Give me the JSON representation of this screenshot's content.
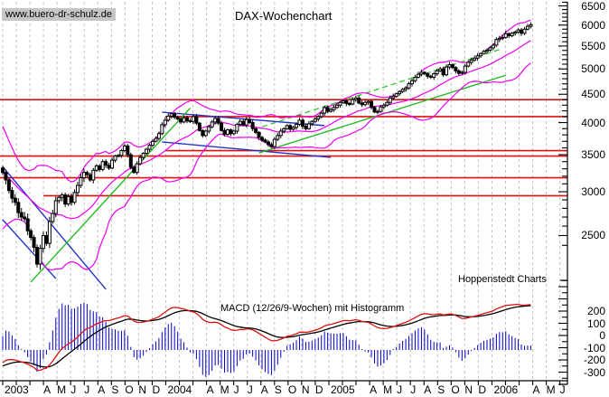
{
  "watermark_text": "www.buero-dr-schulz.de",
  "chart_title": "DAX-Wochenchart",
  "branding_text": "Hoppenstedt Charts",
  "indicator_label": "MACD (12/26/9-Wochen) mit Histogramm",
  "colors": {
    "band": "#ee00ee",
    "trend_green": "#22bb22",
    "trend_green_dashed": "#33cc33",
    "trend_blue": "#2233cc",
    "level_red": "#dd1111",
    "macd_line": "#dd1111",
    "signal_line": "#000000",
    "histogram": "#0000cc",
    "grid": "#c3c3c3",
    "axis": "#000000",
    "candle_up": "#ffffff",
    "candle_down": "#000000",
    "watermark_bg": "#c6c6c6"
  },
  "price_axis": {
    "tick_values": [
      6500,
      6000,
      5500,
      5000,
      4500,
      4000,
      3500,
      3000,
      2500
    ]
  },
  "macd_axis": {
    "tick_values": [
      200,
      100,
      0,
      -100,
      -200,
      -300
    ]
  },
  "x_axis": {
    "month_labels": [
      "2003",
      "",
      "",
      "A",
      "M",
      "J",
      "J",
      "A",
      "S",
      "O",
      "N",
      "D",
      "2004",
      "",
      "",
      "A",
      "M",
      "J",
      "J",
      "A",
      "S",
      "O",
      "N",
      "D",
      "2005",
      "",
      "",
      "A",
      "M",
      "J",
      "J",
      "A",
      "S",
      "O",
      "N",
      "D",
      "2006",
      "",
      "",
      "A",
      "M",
      "J"
    ]
  },
  "chart_data": [
    {
      "type": "candlestick",
      "title": "DAX-Wochenchart",
      "interval": "weekly",
      "x_range": "Jan 2003 - Apr 2006",
      "yscale": "log",
      "ylim": [
        2300,
        6600
      ],
      "weekly_closes": [
        3250,
        3150,
        3015,
        2920,
        2870,
        2750,
        2700,
        2680,
        2550,
        2480,
        2380,
        2220,
        2370,
        2500,
        2420,
        2650,
        2740,
        2890,
        2930,
        2960,
        2850,
        2940,
        2870,
        2990,
        3080,
        3180,
        3250,
        3220,
        3150,
        3280,
        3340,
        3290,
        3400,
        3350,
        3310,
        3420,
        3480,
        3490,
        3560,
        3630,
        3500,
        3320,
        3250,
        3370,
        3460,
        3520,
        3580,
        3640,
        3700,
        3745,
        3820,
        3965,
        4040,
        4110,
        4150,
        4090,
        4060,
        4010,
        4080,
        4030,
        4020,
        4100,
        3990,
        3870,
        3790,
        3860,
        3930,
        4010,
        4070,
        3990,
        3870,
        3810,
        3880,
        3820,
        3860,
        3970,
        4020,
        3960,
        4050,
        4000,
        3900,
        3840,
        3760,
        3720,
        3690,
        3650,
        3620,
        3730,
        3790,
        3860,
        3900,
        3950,
        3890,
        3920,
        3970,
        4040,
        3940,
        3900,
        3980,
        4020,
        4060,
        4100,
        4160,
        4256,
        4190,
        4220,
        4260,
        4300,
        4350,
        4380,
        4330,
        4320,
        4400,
        4430,
        4340,
        4310,
        4350,
        4370,
        4260,
        4180,
        4190,
        4270,
        4300,
        4350,
        4430,
        4460,
        4510,
        4550,
        4590,
        4620,
        4700,
        4760,
        4830,
        4890,
        4930,
        4900,
        4850,
        4830,
        4900,
        4960,
        5000,
        4880,
        5040,
        5090,
        5030,
        4960,
        4910,
        4930,
        5060,
        5140,
        5190,
        5230,
        5280,
        5330,
        5380,
        5408,
        5460,
        5520,
        5650,
        5680,
        5700,
        5790,
        5740,
        5800,
        5830,
        5880,
        5800,
        5900,
        5970,
        6010
      ],
      "overlays": {
        "bollinger": {
          "period": 20,
          "stddev": 2
        },
        "horizontal_levels": [
          {
            "price": 4400,
            "from_week": 0
          },
          {
            "price": 4100,
            "from_week": 52
          },
          {
            "price": 3560,
            "from_week": 52
          },
          {
            "price": 3480,
            "from_week": 0
          },
          {
            "price": 3180,
            "from_week": 0
          },
          {
            "price": 2950,
            "from_week": 13
          }
        ],
        "trendlines": [
          {
            "w1": 0,
            "p1": 3330,
            "w2": 33,
            "p2": 2000,
            "color": "blue",
            "style": "solid"
          },
          {
            "w1": 0,
            "p1": 2670,
            "w2": 17,
            "p2": 2090,
            "color": "blue",
            "style": "solid"
          },
          {
            "w1": 51,
            "p1": 4177,
            "w2": 103,
            "p2": 3950,
            "color": "blue",
            "style": "solid"
          },
          {
            "w1": 51,
            "p1": 3690,
            "w2": 105,
            "p2": 3460,
            "color": "blue",
            "style": "solid"
          },
          {
            "w1": 9,
            "p1": 2060,
            "w2": 60,
            "p2": 4250,
            "color": "green",
            "style": "solid"
          },
          {
            "w1": 82,
            "p1": 3525,
            "w2": 161,
            "p2": 4870,
            "color": "green",
            "style": "solid"
          },
          {
            "w1": 83,
            "p1": 3930,
            "w2": 159,
            "p2": 5420,
            "color": "green",
            "style": "dashed"
          }
        ]
      }
    },
    {
      "type": "macd_histogram",
      "params": {
        "fast": 12,
        "slow": 26,
        "signal": 9,
        "unit": "Wochen"
      },
      "ylim": [
        -400,
        450
      ],
      "computed_from": "weekly_closes"
    }
  ]
}
